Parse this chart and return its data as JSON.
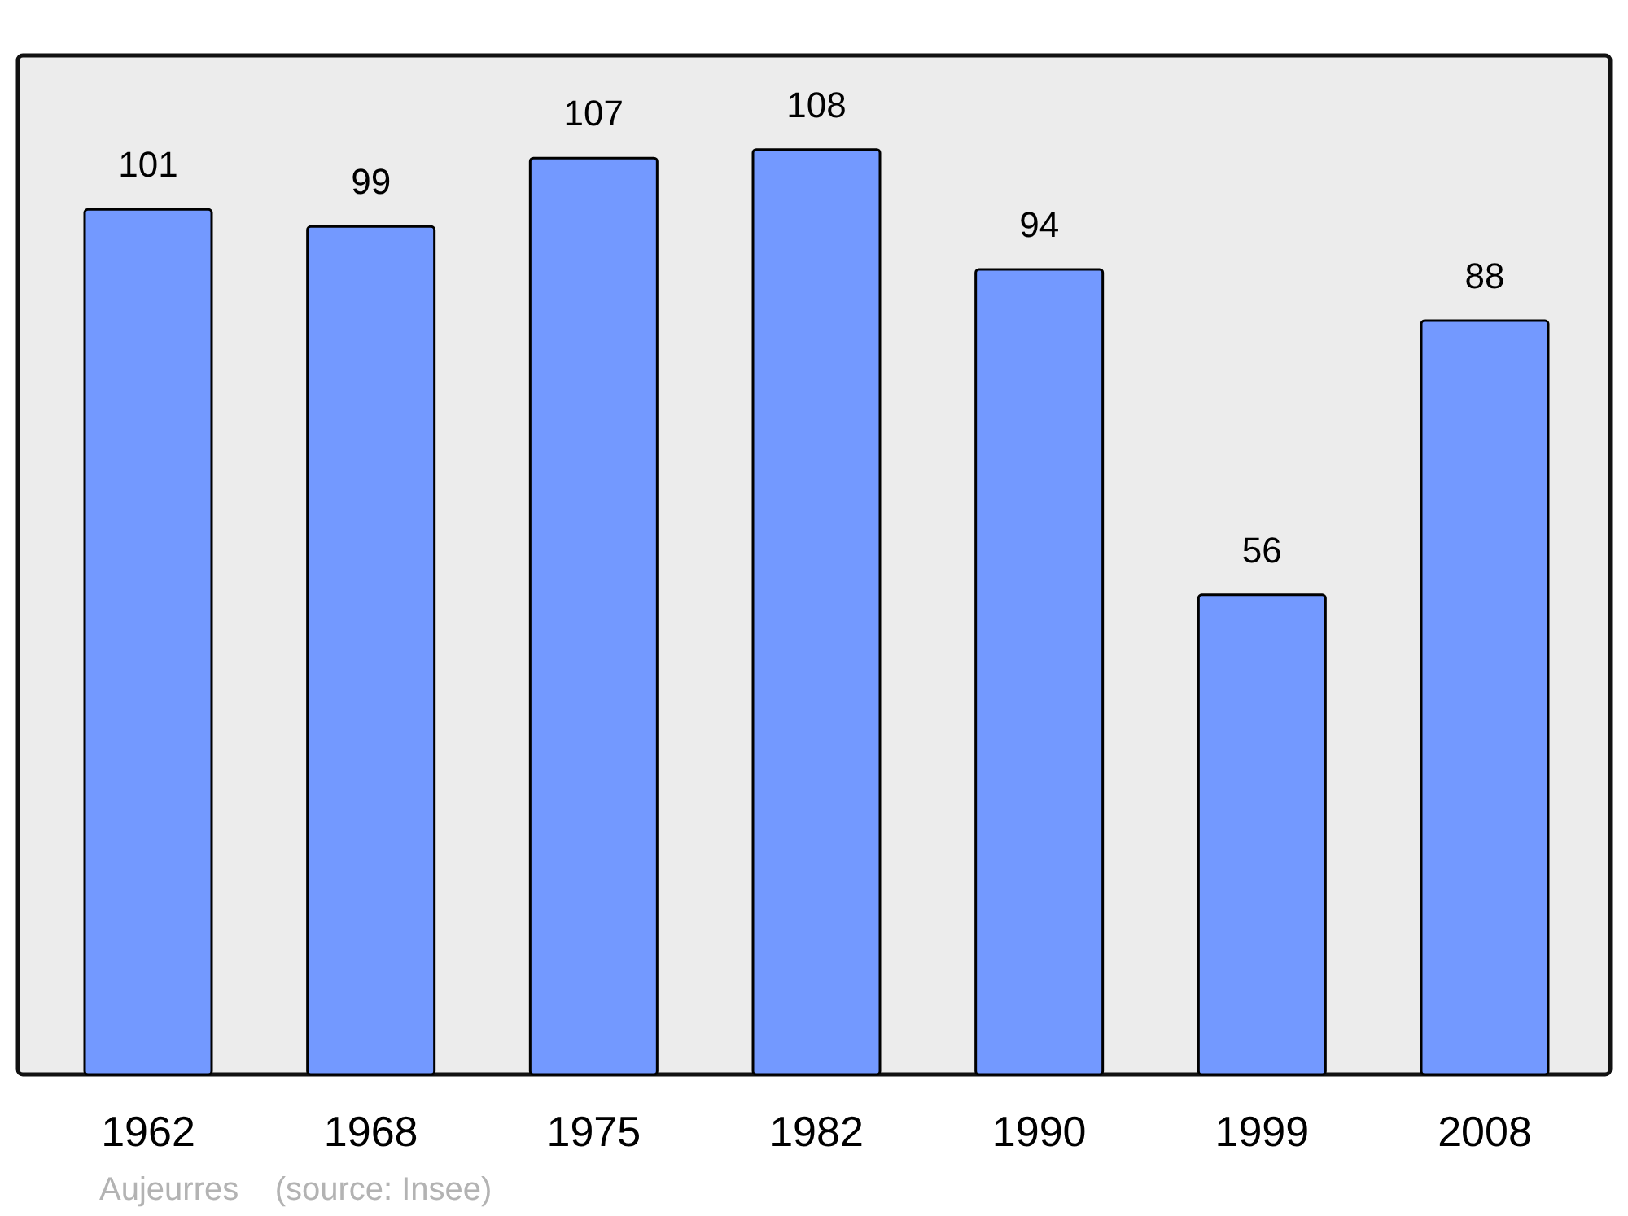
{
  "chart_data": {
    "type": "bar",
    "categories": [
      "1962",
      "1968",
      "1975",
      "1982",
      "1990",
      "1999",
      "2008"
    ],
    "values": [
      101,
      99,
      107,
      108,
      94,
      56,
      88
    ],
    "color": "#7399ff",
    "data_labels": true,
    "annotations": [
      "Aujeurres    (source: Insee)"
    ]
  }
}
